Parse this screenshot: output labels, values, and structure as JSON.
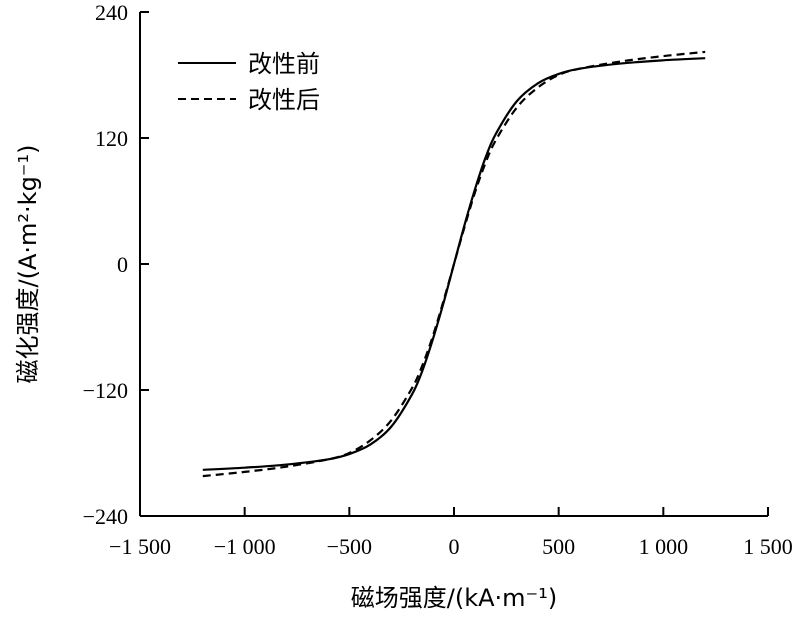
{
  "chart_data": {
    "type": "line",
    "title": "",
    "xlabel": "磁场强度/(kA·m⁻¹)",
    "ylabel": "磁化强度/(A·m²·kg⁻¹)",
    "xlim": [
      -1500,
      1500
    ],
    "ylim": [
      -240,
      240
    ],
    "xticks": [
      -1500,
      -1000,
      -500,
      0,
      500,
      1000,
      1500
    ],
    "xtick_labels": [
      "−1 500",
      "−1 000",
      "−500",
      "0",
      "500",
      "1 000",
      "1 500"
    ],
    "yticks": [
      -240,
      -120,
      0,
      120,
      240
    ],
    "ytick_labels": [
      "−240",
      "−120",
      "0",
      "120",
      "240"
    ],
    "grid": false,
    "legend_position": "top-left",
    "series": [
      {
        "name": "改性前",
        "style": "solid",
        "x": [
          -1200,
          -1000,
          -800,
          -600,
          -500,
          -400,
          -300,
          -200,
          -150,
          -100,
          -50,
          0,
          50,
          100,
          150,
          200,
          300,
          400,
          500,
          600,
          800,
          1000,
          1200
        ],
        "y": [
          -196,
          -194,
          -191,
          -186,
          -181,
          -172,
          -155,
          -124,
          -101,
          -71,
          -37,
          0,
          37,
          71,
          101,
          124,
          155,
          172,
          181,
          186,
          191,
          194,
          196
        ]
      },
      {
        "name": "改性后",
        "style": "dashed",
        "x": [
          -1200,
          -1000,
          -800,
          -600,
          -500,
          -400,
          -300,
          -200,
          -150,
          -100,
          -50,
          0,
          50,
          100,
          150,
          200,
          300,
          400,
          500,
          600,
          800,
          1000,
          1200
        ],
        "y": [
          -202,
          -198,
          -193,
          -186,
          -180,
          -168,
          -149,
          -118,
          -96,
          -68,
          -35,
          0,
          35,
          68,
          96,
          118,
          149,
          168,
          180,
          186,
          193,
          198,
          202
        ]
      }
    ]
  }
}
